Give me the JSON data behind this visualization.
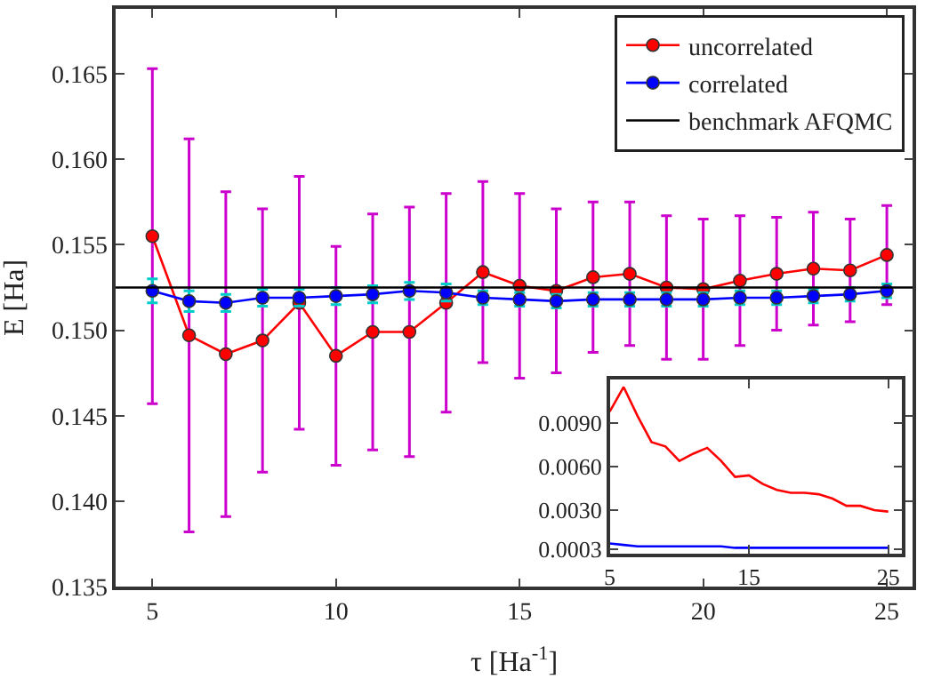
{
  "chart_data": [
    {
      "type": "line",
      "xlabel": "τ [Ha$^{-1}$]",
      "ylabel": "E [Ha]",
      "x": [
        5,
        6,
        7,
        8,
        9,
        10,
        11,
        12,
        13,
        14,
        15,
        16,
        17,
        18,
        19,
        20,
        21,
        22,
        23,
        24,
        25
      ],
      "xlim": [
        4,
        25.7
      ],
      "xticks": [
        5,
        10,
        15,
        20,
        25
      ],
      "ylim": [
        0.135,
        0.1688
      ],
      "yticks": [
        0.135,
        {
          "value": 0.14,
          "label": "0.140"
        },
        0.145,
        {
          "value": 0.15,
          "label": "0.150"
        },
        0.155,
        {
          "value": 0.16,
          "label": "0.160"
        },
        0.165
      ],
      "series": [
        {
          "name": "uncorrelated",
          "color": "#ff0000",
          "values": [
            0.1555,
            0.1497,
            0.1486,
            0.1494,
            0.1516,
            0.1485,
            0.1499,
            0.1499,
            0.1516,
            0.1534,
            0.1526,
            0.1523,
            0.1531,
            0.1533,
            0.1525,
            0.1524,
            0.1529,
            0.1533,
            0.1536,
            0.1535,
            0.1544
          ],
          "errors": [
            0.0098,
            0.0115,
            0.0095,
            0.0077,
            0.0074,
            0.0064,
            0.0069,
            0.0073,
            0.0064,
            0.0053,
            0.0054,
            0.0048,
            0.0044,
            0.0042,
            0.0042,
            0.0041,
            0.0038,
            0.0033,
            0.0033,
            0.003,
            0.0029
          ]
        },
        {
          "name": "correlated",
          "color": "#0000ff",
          "values": [
            0.1523,
            0.1517,
            0.1516,
            0.1519,
            0.1519,
            0.152,
            0.1521,
            0.1523,
            0.1522,
            0.1519,
            0.1518,
            0.1517,
            0.1518,
            0.1518,
            0.1518,
            0.1518,
            0.1519,
            0.1519,
            0.152,
            0.1521,
            0.1523
          ],
          "errors": [
            0.0007,
            0.0006,
            0.0005,
            0.0005,
            0.0005,
            0.0005,
            0.0005,
            0.0005,
            0.0005,
            0.0004,
            0.0004,
            0.0004,
            0.0004,
            0.0004,
            0.0004,
            0.0004,
            0.0004,
            0.0004,
            0.0004,
            0.0004,
            0.0004
          ]
        },
        {
          "name": "benchmark AFQMC",
          "color": "#000000",
          "x": [
            4,
            25.7
          ],
          "values": [
            0.1525,
            0.1525
          ],
          "marker": "none"
        }
      ],
      "marker": "circle",
      "legend": "top right"
    },
    {
      "type": "line",
      "x": [
        5,
        6,
        7,
        8,
        9,
        10,
        11,
        12,
        13,
        14,
        15,
        16,
        17,
        18,
        19,
        20,
        21,
        22,
        23,
        24,
        25
      ],
      "xlim": [
        5,
        26
      ],
      "xticks": [
        5,
        15,
        25
      ],
      "ylim": [
        0,
        0.012
      ],
      "yticks": [
        {
          "value": 0.0003,
          "label": "0.0003"
        },
        {
          "value": 0.003,
          "label": "0.0030"
        },
        {
          "value": 0.006,
          "label": "0.0060"
        },
        {
          "value": 0.009,
          "label": "0.0090"
        }
      ],
      "series": [
        {
          "color": "#ff0000",
          "values": [
            0.0098,
            0.0115,
            0.0095,
            0.0077,
            0.0074,
            0.0064,
            0.0069,
            0.0073,
            0.0064,
            0.0053,
            0.0054,
            0.0048,
            0.0044,
            0.0042,
            0.0042,
            0.0041,
            0.0038,
            0.0033,
            0.0033,
            0.003,
            0.0029
          ]
        },
        {
          "color": "#0000ff",
          "values": [
            0.0007,
            0.0006,
            0.0005,
            0.0005,
            0.0005,
            0.0005,
            0.0005,
            0.0005,
            0.0005,
            0.0004,
            0.0004,
            0.0004,
            0.0004,
            0.0004,
            0.0004,
            0.0004,
            0.0004,
            0.0004,
            0.0004,
            0.0004,
            0.0004
          ]
        }
      ],
      "marker": "none",
      "legend": false
    }
  ]
}
